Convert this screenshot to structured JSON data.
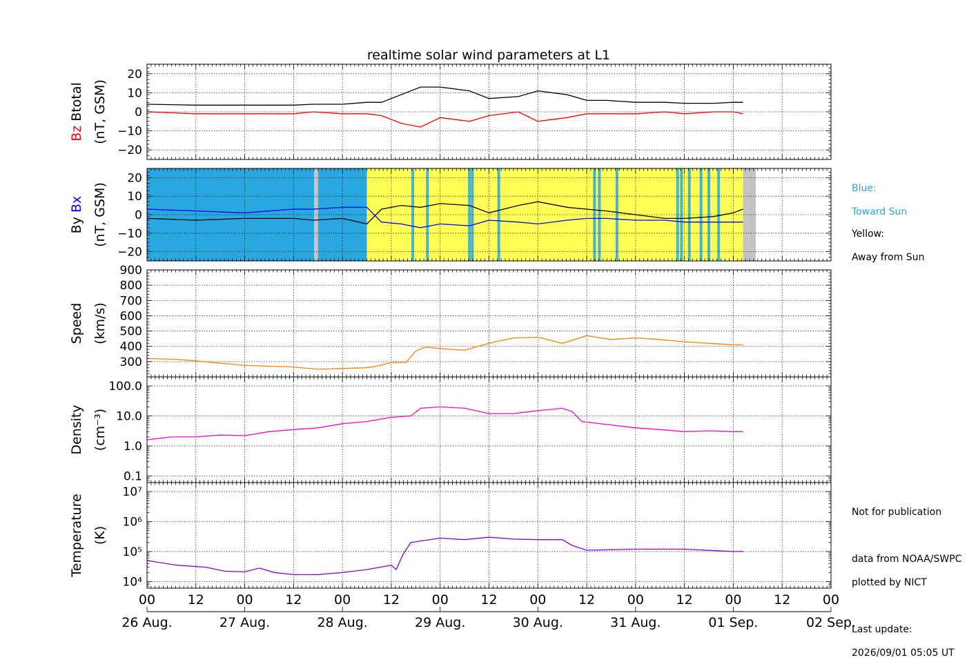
{
  "title": "realtime solar wind parameters at L1",
  "panels": [
    {
      "id": "btotal",
      "ylabel": [
        "Bz",
        "Btotal",
        "(nT, GSM)"
      ],
      "ylabel_colors": [
        "#ff0000",
        "#000000",
        "#000000"
      ],
      "scale": "linear",
      "ylim": [
        -25,
        25
      ],
      "ticks": [
        -20,
        -10,
        0,
        10,
        20
      ],
      "tick_labels": [
        "−20",
        "−10",
        "0",
        "10",
        "20"
      ]
    },
    {
      "id": "bxby",
      "ylabel": [
        "By",
        "Bx",
        "(nT, GSM)"
      ],
      "ylabel_colors": [
        "#000000",
        "#0000ff",
        "#000000"
      ],
      "scale": "linear",
      "ylim": [
        -25,
        25
      ],
      "ticks": [
        -20,
        -10,
        0,
        10,
        20
      ],
      "tick_labels": [
        "−20",
        "−10",
        "0",
        "10",
        "20"
      ]
    },
    {
      "id": "speed",
      "ylabel": [
        "Speed",
        "(km/s)"
      ],
      "scale": "linear",
      "ylim": [
        200,
        900
      ],
      "ticks": [
        300,
        400,
        500,
        600,
        700,
        800,
        900
      ],
      "tick_labels": [
        "300",
        "400",
        "500",
        "600",
        "700",
        "800",
        "900"
      ]
    },
    {
      "id": "density",
      "ylabel": [
        "Density",
        "(cm⁻³)"
      ],
      "scale": "log",
      "ylim": [
        0.06,
        200
      ],
      "ticks": [
        0.1,
        1,
        10,
        100
      ],
      "tick_labels": [
        "0.1",
        "1.0",
        "10.0",
        "100.0"
      ]
    },
    {
      "id": "temperature",
      "ylabel": [
        "Temperature",
        "(K)"
      ],
      "scale": "log",
      "ylim": [
        6000,
        20000000
      ],
      "ticks": [
        10000,
        100000,
        1000000,
        10000000
      ],
      "tick_labels": [
        "10⁴",
        "10⁵",
        "10⁶",
        "10⁷"
      ]
    }
  ],
  "x_axis": {
    "hour_labels": [
      "00",
      "12",
      "00",
      "12",
      "00",
      "12",
      "00",
      "12",
      "00",
      "12",
      "00",
      "12",
      "00",
      "12",
      "00"
    ],
    "date_labels": [
      "26 Aug.",
      "27 Aug.",
      "28 Aug.",
      "29 Aug.",
      "30 Aug.",
      "31 Aug.",
      "01 Sep.",
      "02 Sep."
    ],
    "xlim_days": [
      0,
      7
    ]
  },
  "legend": {
    "blue_title": "Blue:",
    "blue_text": "Toward Sun",
    "yellow_title": "Yellow:",
    "yellow_text": "Away from Sun",
    "blue_color": "#29a8e0",
    "yellow_color": "#ffff55"
  },
  "notes": {
    "publication": "Not for publication",
    "source": "data from NOAA/SWPC",
    "plotted": "plotted by NICT",
    "update_label": "Last update:",
    "update_time": "2026/09/01 05:05 UT"
  },
  "chart_data": {
    "type": "line",
    "title": "realtime solar wind parameters at L1",
    "x_unit": "days since 26 Aug. 00 UT",
    "xlim": [
      0,
      7
    ],
    "grid": true,
    "series": [
      {
        "name": "Btotal",
        "panel": "btotal",
        "color": "#000000",
        "x": [
          0,
          0.5,
          1,
          1.5,
          1.7,
          2,
          2.25,
          2.4,
          2.6,
          2.8,
          3,
          3.3,
          3.5,
          3.8,
          4,
          4.3,
          4.5,
          4.7,
          5,
          5.3,
          5.5,
          5.8,
          6,
          6.1
        ],
        "y": [
          4,
          3.5,
          3.5,
          3.5,
          4,
          4,
          5,
          5,
          9,
          13,
          13,
          11,
          7,
          8,
          11,
          9,
          6,
          6,
          5,
          5,
          4.5,
          4.5,
          5,
          5
        ]
      },
      {
        "name": "Bz",
        "panel": "btotal",
        "color": "#ff0000",
        "x": [
          0,
          0.5,
          1,
          1.5,
          1.7,
          2,
          2.25,
          2.4,
          2.6,
          2.8,
          3,
          3.3,
          3.5,
          3.8,
          4,
          4.3,
          4.5,
          4.7,
          5,
          5.3,
          5.5,
          5.8,
          6,
          6.1
        ],
        "y": [
          0,
          -1,
          -1,
          -1,
          0,
          -1,
          -1,
          -2,
          -6,
          -8,
          -3,
          -5,
          -2,
          0,
          -5,
          -3,
          -1,
          -1,
          -1,
          0,
          -1,
          0,
          0,
          -1
        ]
      },
      {
        "name": "Bx",
        "panel": "bxby",
        "color": "#0000ff",
        "x": [
          0,
          0.5,
          1,
          1.5,
          1.7,
          2,
          2.25,
          2.4,
          2.6,
          2.8,
          3,
          3.3,
          3.5,
          3.8,
          4,
          4.3,
          4.5,
          4.7,
          5,
          5.3,
          5.5,
          5.8,
          6,
          6.1
        ],
        "y": [
          3,
          2,
          1,
          3,
          3,
          4,
          4,
          -4,
          -5,
          -7,
          -5,
          -6,
          -3,
          -4,
          -5,
          -3,
          -2,
          -2,
          -3,
          -3,
          -4,
          -4,
          -4,
          -4
        ]
      },
      {
        "name": "By",
        "panel": "bxby",
        "color": "#000000",
        "x": [
          0,
          0.5,
          1,
          1.5,
          1.7,
          2,
          2.25,
          2.4,
          2.6,
          2.8,
          3,
          3.3,
          3.5,
          3.8,
          4,
          4.3,
          4.5,
          4.7,
          5,
          5.3,
          5.5,
          5.8,
          6,
          6.1
        ],
        "y": [
          -2,
          -3,
          -2,
          -2,
          -3,
          -2,
          -5,
          3,
          5,
          4,
          6,
          5,
          1,
          5,
          7,
          4,
          3,
          2,
          0,
          -2,
          -2,
          -1,
          1,
          3
        ]
      },
      {
        "name": "Speed",
        "panel": "speed",
        "color": "#ff8000",
        "x": [
          0,
          0.3,
          0.5,
          1,
          1.5,
          1.75,
          2,
          2.25,
          2.35,
          2.5,
          2.65,
          2.75,
          2.85,
          3,
          3.25,
          3.5,
          3.75,
          4,
          4.25,
          4.5,
          4.75,
          5,
          5.25,
          5.5,
          5.75,
          6,
          6.1
        ],
        "y": [
          320,
          315,
          305,
          275,
          265,
          250,
          255,
          260,
          270,
          295,
          295,
          370,
          395,
          385,
          375,
          420,
          455,
          460,
          420,
          470,
          445,
          455,
          445,
          430,
          420,
          410,
          410
        ]
      },
      {
        "name": "Density",
        "panel": "density",
        "color": "#ff00cc",
        "x": [
          0,
          0.25,
          0.5,
          0.75,
          1,
          1.25,
          1.5,
          1.75,
          2,
          2.25,
          2.5,
          2.7,
          2.8,
          3,
          3.25,
          3.5,
          3.75,
          4,
          4.25,
          4.35,
          4.45,
          4.75,
          5,
          5.25,
          5.5,
          5.75,
          6,
          6.1
        ],
        "y": [
          1.6,
          2,
          2,
          2.3,
          2.2,
          3,
          3.5,
          4,
          5.5,
          6.5,
          9,
          10,
          18,
          20,
          18,
          12,
          12,
          15,
          18,
          14,
          6.5,
          5,
          4,
          3.5,
          3,
          3.2,
          3,
          3
        ]
      },
      {
        "name": "Temperature",
        "panel": "temperature",
        "color": "#8800cc",
        "x": [
          0,
          0.3,
          0.6,
          0.8,
          1,
          1.15,
          1.3,
          1.5,
          1.75,
          2,
          2.25,
          2.5,
          2.55,
          2.62,
          2.7,
          3,
          3.25,
          3.5,
          3.75,
          4,
          4.25,
          4.35,
          4.5,
          5,
          5.5,
          6,
          6.1
        ],
        "y": [
          50000,
          35000,
          30000,
          22000,
          21000,
          28000,
          20000,
          17000,
          17000,
          20000,
          25000,
          35000,
          25000,
          80000,
          200000,
          280000,
          250000,
          300000,
          260000,
          250000,
          250000,
          160000,
          110000,
          120000,
          120000,
          100000,
          100000
        ]
      }
    ],
    "imf_sector_bands": [
      {
        "start": 0,
        "end": 1.71,
        "sector": "blue"
      },
      {
        "start": 1.71,
        "end": 1.75,
        "sector": "gap"
      },
      {
        "start": 1.75,
        "end": 2.25,
        "sector": "blue"
      },
      {
        "start": 2.25,
        "end": 6.1,
        "sector": "yellow"
      },
      {
        "start": 6.1,
        "end": 6.23,
        "sector": "gap"
      }
    ],
    "imf_blue_stripes": [
      2.72,
      2.87,
      3.3,
      3.33,
      3.6,
      4.58,
      4.63,
      4.81,
      5.43,
      5.47,
      5.55,
      5.67,
      5.75,
      5.85
    ]
  }
}
